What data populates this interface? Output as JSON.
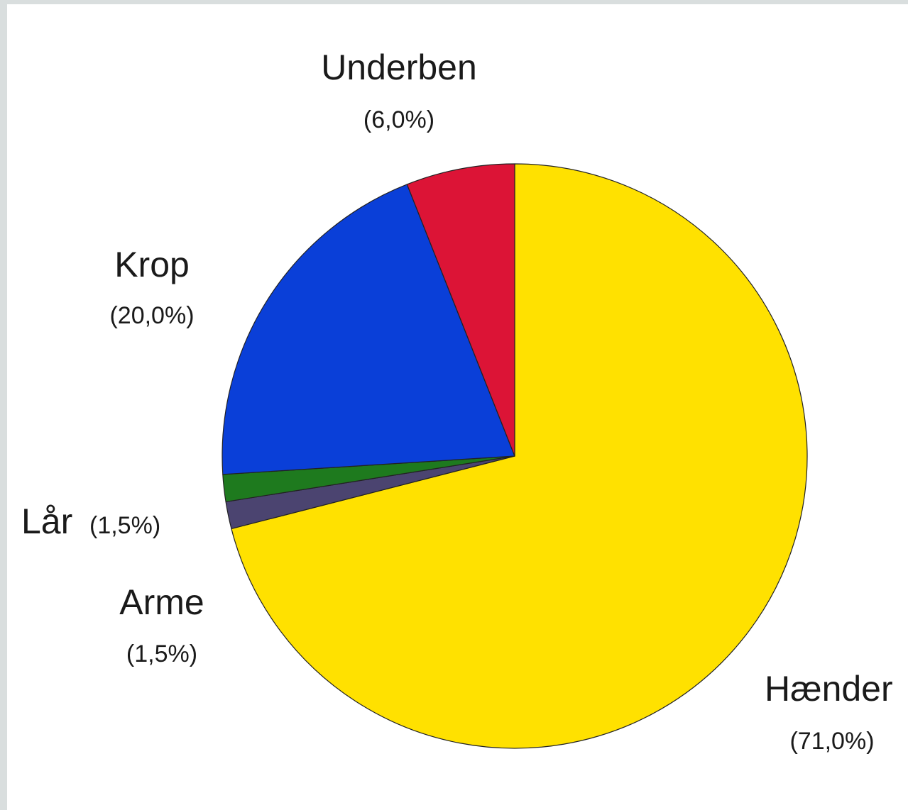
{
  "chart_data": {
    "type": "pie",
    "title": "",
    "slices": [
      {
        "name": "Hænder",
        "value": 71.0,
        "value_label": "(71,0%)",
        "color": "#FFE100"
      },
      {
        "name": "Arme",
        "value": 1.5,
        "value_label": "(1,5%)",
        "color": "#4B4470"
      },
      {
        "name": "Lår",
        "value": 1.5,
        "value_label": "(1,5%)",
        "color": "#1E7A1E"
      },
      {
        "name": "Krop",
        "value": 20.0,
        "value_label": "(20,0%)",
        "color": "#0A3FD8"
      },
      {
        "name": "Underben",
        "value": 6.0,
        "value_label": "(6,0%)",
        "color": "#DC1436"
      }
    ],
    "start_angle_deg": 0,
    "direction": "clockwise",
    "legend": "none",
    "labels": "outside"
  }
}
